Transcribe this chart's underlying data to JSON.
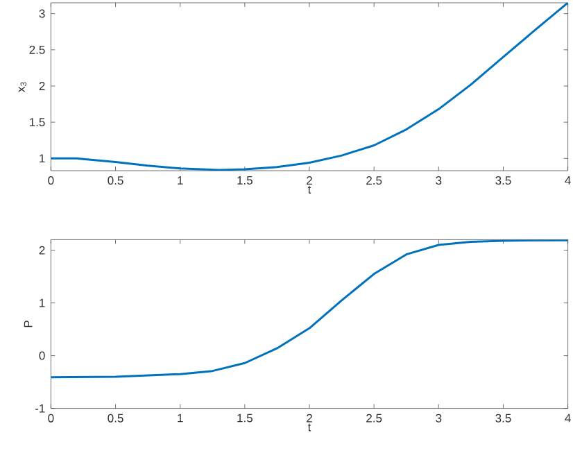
{
  "chart_data": [
    {
      "type": "line",
      "xlabel": "t",
      "ylabel": "x$_{3}$",
      "xlim": [
        0,
        4
      ],
      "ylim": [
        0.83,
        3.15
      ],
      "xticks": [
        0,
        0.5,
        1,
        1.5,
        2,
        2.5,
        3,
        3.5,
        4
      ],
      "yticks": [
        1,
        1.5,
        2,
        2.5,
        3
      ],
      "grid": false,
      "series": [
        {
          "color": "#0072bd",
          "x": [
            0,
            0.2,
            0.25,
            0.5,
            0.75,
            1,
            1.3,
            1.5,
            1.75,
            2,
            2.25,
            2.5,
            2.75,
            3,
            3.25,
            3.5,
            3.75,
            4
          ],
          "values": [
            1.0,
            1.0,
            0.99,
            0.95,
            0.9,
            0.86,
            0.84,
            0.85,
            0.88,
            0.94,
            1.04,
            1.18,
            1.4,
            1.68,
            2.02,
            2.4,
            2.78,
            3.15
          ]
        }
      ]
    },
    {
      "type": "line",
      "xlabel": "t",
      "ylabel": "P",
      "xlim": [
        0,
        4
      ],
      "ylim": [
        -1,
        2.2
      ],
      "xticks": [
        0,
        0.5,
        1,
        1.5,
        2,
        2.5,
        3,
        3.5,
        4
      ],
      "yticks": [
        -1,
        0,
        1,
        2
      ],
      "grid": false,
      "series": [
        {
          "color": "#0072bd",
          "x": [
            0,
            0.5,
            1,
            1.25,
            1.5,
            1.75,
            2,
            2.25,
            2.5,
            2.75,
            3,
            3.25,
            3.5,
            4
          ],
          "values": [
            -0.41,
            -0.4,
            -0.35,
            -0.29,
            -0.14,
            0.14,
            0.52,
            1.05,
            1.55,
            1.92,
            2.1,
            2.16,
            2.18,
            2.19
          ]
        }
      ]
    }
  ]
}
